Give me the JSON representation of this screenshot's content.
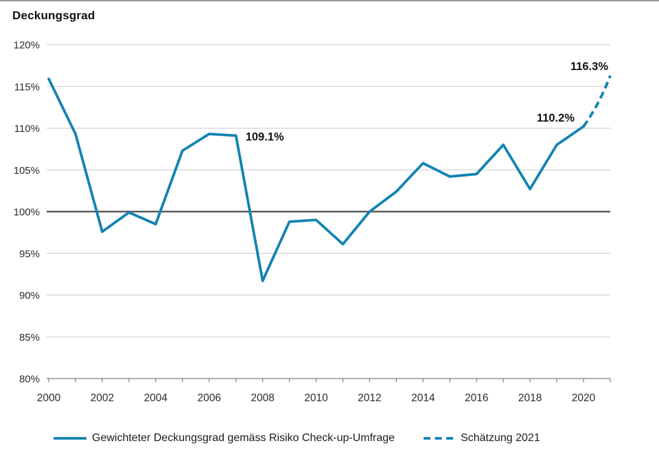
{
  "chart_data": {
    "type": "line",
    "title": "Deckungsgrad",
    "x_range": [
      2000,
      2021
    ],
    "ylim": [
      80,
      120
    ],
    "grid": true,
    "legend_position": "bottom",
    "y_ticks": [
      {
        "value": 80,
        "label": "80%"
      },
      {
        "value": 85,
        "label": "85%"
      },
      {
        "value": 90,
        "label": "90%"
      },
      {
        "value": 95,
        "label": "95%"
      },
      {
        "value": 100,
        "label": "100%"
      },
      {
        "value": 105,
        "label": "105%"
      },
      {
        "value": 110,
        "label": "110%"
      },
      {
        "value": 115,
        "label": "115%"
      },
      {
        "value": 120,
        "label": "120%"
      }
    ],
    "x_ticks": [
      {
        "year": 2000,
        "label": "2000"
      },
      {
        "year": 2002,
        "label": "2002"
      },
      {
        "year": 2004,
        "label": "2004"
      },
      {
        "year": 2006,
        "label": "2006"
      },
      {
        "year": 2008,
        "label": "2008"
      },
      {
        "year": 2010,
        "label": "2010"
      },
      {
        "year": 2012,
        "label": "2012"
      },
      {
        "year": 2014,
        "label": "2014"
      },
      {
        "year": 2016,
        "label": "2016"
      },
      {
        "year": 2018,
        "label": "2018"
      },
      {
        "year": 2020,
        "label": "2020"
      }
    ],
    "reference_line": {
      "value": 100
    },
    "series": [
      {
        "name": "Gewichteter Deckungsgrad gemäss Risiko Check-up-Umfrage",
        "style": "solid",
        "x": [
          2000,
          2001,
          2002,
          2003,
          2004,
          2005,
          2006,
          2007,
          2008,
          2009,
          2010,
          2011,
          2012,
          2013,
          2014,
          2015,
          2016,
          2017,
          2018,
          2019,
          2020
        ],
        "values": [
          115.9,
          109.3,
          97.6,
          99.9,
          98.5,
          107.3,
          109.3,
          109.1,
          91.7,
          98.8,
          99.0,
          96.1,
          100.0,
          102.4,
          105.8,
          104.2,
          104.5,
          108.0,
          102.7,
          108.0,
          110.2
        ]
      },
      {
        "name": "Schätzung 2021",
        "style": "dashed",
        "x": [
          2020,
          2021
        ],
        "values": [
          110.2,
          116.3
        ]
      }
    ],
    "annotations": [
      {
        "text": "109.1%",
        "year": 2007,
        "value": 109.1
      },
      {
        "text": "110.2%",
        "year": 2020,
        "value": 110.2
      },
      {
        "text": "116.3%",
        "year": 2021,
        "value": 116.3
      }
    ],
    "colors": {
      "line": "#1283b2",
      "grid": "#c9c9c9",
      "reference_line": "#5a5a5a",
      "axis": "#7f7f7f",
      "tick_text": "#2b2b2b",
      "label_text": "#111111",
      "top_border": "#94989c"
    }
  }
}
